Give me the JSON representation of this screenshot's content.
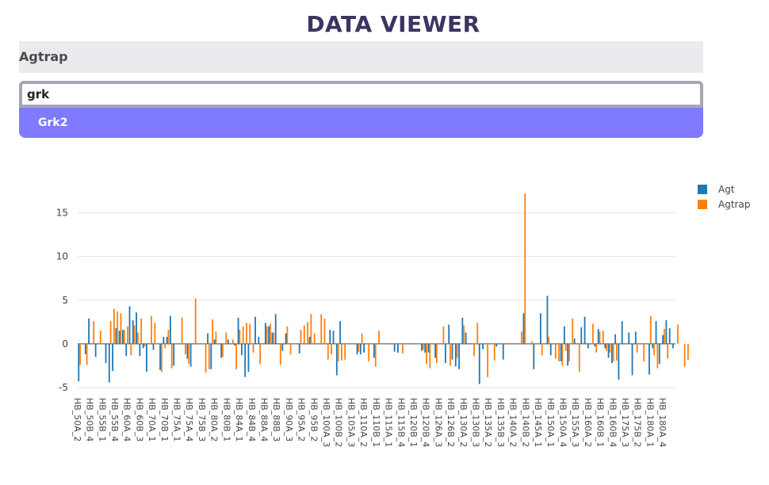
{
  "header": {
    "title": "DATA VIEWER"
  },
  "selected": {
    "label": "Agtrap"
  },
  "search": {
    "value": "grk",
    "placeholder": ""
  },
  "dropdown": {
    "options": [
      "Grk2"
    ]
  },
  "colors": {
    "agt": "#1f77b4",
    "agtrap": "#ff7f0e",
    "title": "#3b3561",
    "highlight": "#7f7aff"
  },
  "chart_data": {
    "type": "bar",
    "title": "",
    "xlabel": "",
    "ylabel": "",
    "ylim": [
      -6,
      18.5
    ],
    "yticks": [
      -5,
      0,
      5,
      10,
      15
    ],
    "grid": true,
    "legend": "top-right",
    "xtick_labels": [
      "HB_50A_2",
      "HB_50B_4",
      "HB_55B_1",
      "HB_55B_4",
      "HB_60A_4",
      "HB_60B_3",
      "HB_70A_1",
      "HB_70B_1",
      "HB_75A_1",
      "HB_75A_4",
      "HB_75B_3",
      "HB_80A_2",
      "HB_80B_1",
      "HB_84A_1",
      "HB_84B_4",
      "HB_88A_4",
      "HB_88B_3",
      "HB_90A_3",
      "HB_95A_2",
      "HB_95B_2",
      "HB_100A_3",
      "HB_100B_2",
      "HB_105A_3",
      "HB_110A_2",
      "HB_110B_1",
      "HB_115A_1",
      "HB_115B_4",
      "HB_120B_1",
      "HB_120B_4",
      "HB_126A_3",
      "HB_126B_2",
      "HB_130A_2",
      "HB_130B_3",
      "HB_135A_2",
      "HB_135B_3",
      "HB_140A_2",
      "HB_140B_2",
      "HB_145A_1",
      "HB_150A_1",
      "HB_150A_4",
      "HB_155A_3",
      "HB_160A_2",
      "HB_160B_1",
      "HB_160B_4",
      "HB_175A_3",
      "HB_175B_2",
      "HB_180A_1",
      "HB_180A_4"
    ],
    "series": [
      {
        "name": "Agt",
        "values": [
          -4.3,
          0,
          -1.2,
          2.9,
          0,
          -1.5,
          0,
          0,
          -2.2,
          -4.4,
          -3.1,
          1.8,
          1.5,
          1.6,
          -1.4,
          4.3,
          2.7,
          3.6,
          -1.4,
          -0.5,
          -3.2,
          0,
          -0.7,
          0,
          -3.0,
          0.8,
          0.8,
          3.2,
          -2.5,
          0,
          0,
          0,
          -1.7,
          -2.6,
          0,
          0,
          0,
          0,
          1.2,
          -2.9,
          0.5,
          0,
          -1.6,
          0,
          0.5,
          0,
          -0.2,
          3.0,
          -1.3,
          -3.8,
          -3.2,
          0,
          3.1,
          0.8,
          0,
          2.4,
          2.0,
          1.3,
          3.4,
          0,
          -0.8,
          1.2,
          0,
          0,
          0,
          -1.1,
          0,
          0,
          0.8,
          0,
          0,
          0,
          0,
          0,
          1.6,
          1.5,
          -3.6,
          2.6,
          0,
          0,
          0,
          0,
          -1.2,
          -1.2,
          -1.0,
          0,
          0,
          -1.6,
          0,
          0,
          0,
          0,
          0,
          -0.9,
          -1.0,
          0,
          0,
          0,
          0,
          0,
          0,
          -0.8,
          -1.0,
          -1.0,
          0,
          -1.6,
          0,
          0,
          -2.2,
          2.2,
          -1.8,
          -2.6,
          -2.9,
          3.0,
          1.3,
          0,
          0,
          0,
          -4.6,
          -0.6,
          0,
          0,
          0,
          -0.3,
          0,
          -1.8,
          0,
          0,
          0,
          0,
          0,
          3.5,
          0,
          0,
          -2.9,
          0,
          3.5,
          0,
          5.5,
          -1.3,
          0,
          0,
          -2.0,
          2.0,
          -2.5,
          0,
          0.6,
          0,
          1.9,
          3.1,
          -0.5,
          0,
          -0.3,
          1.7,
          0,
          -0.5,
          -1.6,
          -2.2,
          1.1,
          -4.1,
          2.6,
          0,
          1.3,
          -3.6,
          1.4,
          0,
          0,
          0,
          -3.5,
          -0.5,
          2.6,
          -2.3,
          1.0,
          2.7,
          1.8,
          -0.5
        ]
      },
      {
        "name": "Agtrap",
        "values": [
          -2.4,
          0,
          -2.4,
          0,
          2.6,
          0,
          1.5,
          0,
          0,
          2.6,
          4.0,
          3.7,
          3.5,
          1.6,
          2.0,
          -1.3,
          2.1,
          1.3,
          2.9,
          -0.3,
          0,
          3.2,
          2.4,
          0,
          -3.2,
          -0.5,
          1.6,
          -2.8,
          0,
          0,
          3.0,
          -1.2,
          -2.3,
          0,
          5.2,
          0,
          0,
          -3.3,
          -2.9,
          2.8,
          1.4,
          0,
          -1.5,
          1.3,
          0,
          0.5,
          -2.9,
          1.6,
          2.0,
          2.4,
          2.3,
          -1.0,
          0,
          -2.3,
          0,
          2.0,
          2.3,
          1.3,
          0,
          -2.4,
          0,
          2.0,
          -1.2,
          0,
          0,
          1.6,
          2.1,
          2.5,
          3.4,
          1.2,
          0,
          3.4,
          2.9,
          -1.8,
          -1.2,
          0,
          -2.0,
          -1.9,
          -1.8,
          0,
          0,
          0,
          -0.9,
          1.2,
          0,
          -2.0,
          0,
          -2.6,
          1.5,
          0,
          0,
          0,
          0,
          0,
          0,
          -1.1,
          0,
          0,
          0,
          0,
          0,
          -0.7,
          -2.3,
          -2.8,
          0,
          -2.2,
          0,
          2.0,
          0,
          -2.5,
          0,
          -1.6,
          0,
          2.1,
          0,
          0,
          -1.4,
          2.4,
          0,
          0,
          -3.8,
          0,
          -1.9,
          0,
          0,
          0,
          0,
          0,
          0,
          0,
          1.4,
          17.2,
          0,
          0.3,
          0,
          0,
          -1.3,
          0,
          0.8,
          0,
          -1.7,
          -2.0,
          -2.5,
          -0.8,
          -2.0,
          2.9,
          0,
          -3.2,
          0,
          0,
          0,
          2.3,
          -1.0,
          1.4,
          1.5,
          -0.8,
          -1.0,
          -2.0,
          -1.9,
          0,
          0,
          0,
          0,
          0,
          -1.0,
          0,
          -2.0,
          0,
          3.2,
          -1.3,
          -2.8,
          0,
          1.7,
          -1.7,
          0,
          0,
          2.2,
          0,
          -2.6,
          -1.8
        ]
      }
    ]
  }
}
